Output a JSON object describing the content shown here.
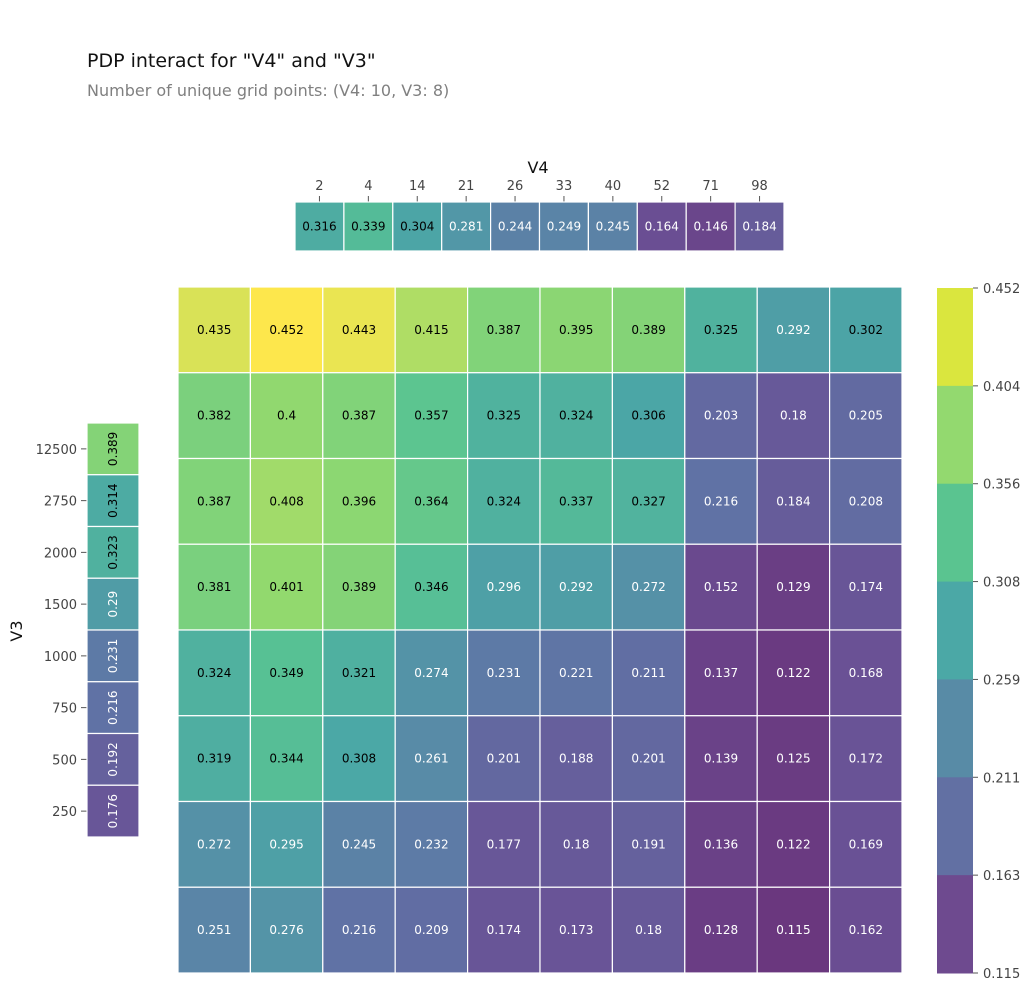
{
  "chart_data": {
    "type": "heatmap",
    "title": "PDP interact for \"V4\" and \"V3\"",
    "subtitle": "Number of unique grid points: (V4: 10, V3: 8)",
    "xlabel": "V4",
    "ylabel": "V3",
    "x_ticks": [
      "2",
      "4",
      "14",
      "21",
      "26",
      "33",
      "40",
      "52",
      "71",
      "98"
    ],
    "y_ticks": [
      "12500",
      "2750",
      "2000",
      "1500",
      "1000",
      "750",
      "500",
      "250"
    ],
    "x_marginal": [
      0.316,
      0.339,
      0.304,
      0.281,
      0.244,
      0.249,
      0.245,
      0.164,
      0.146,
      0.184
    ],
    "y_marginal": [
      0.389,
      0.314,
      0.323,
      0.29,
      0.231,
      0.216,
      0.192,
      0.176
    ],
    "matrix": [
      [
        0.435,
        0.452,
        0.443,
        0.415,
        0.387,
        0.395,
        0.389,
        0.325,
        0.292,
        0.302
      ],
      [
        0.382,
        0.4,
        0.387,
        0.357,
        0.325,
        0.324,
        0.306,
        0.203,
        0.18,
        0.205
      ],
      [
        0.387,
        0.408,
        0.396,
        0.364,
        0.324,
        0.337,
        0.327,
        0.216,
        0.184,
        0.208
      ],
      [
        0.381,
        0.401,
        0.389,
        0.346,
        0.296,
        0.292,
        0.272,
        0.152,
        0.129,
        0.174
      ],
      [
        0.324,
        0.349,
        0.321,
        0.274,
        0.231,
        0.221,
        0.211,
        0.137,
        0.122,
        0.168
      ],
      [
        0.319,
        0.344,
        0.308,
        0.261,
        0.201,
        0.188,
        0.201,
        0.139,
        0.125,
        0.172
      ],
      [
        0.272,
        0.295,
        0.245,
        0.232,
        0.177,
        0.18,
        0.191,
        0.136,
        0.122,
        0.169
      ],
      [
        0.251,
        0.276,
        0.216,
        0.209,
        0.174,
        0.173,
        0.18,
        0.128,
        0.115,
        0.162
      ]
    ],
    "colorbar": {
      "ticks": [
        "0.452",
        "0.404",
        "0.356",
        "0.308",
        "0.259",
        "0.211",
        "0.163",
        "0.115"
      ],
      "min": 0.115,
      "max": 0.452,
      "bins": [
        "#dae63e",
        "#93d96f",
        "#5ac490",
        "#4ba8a6",
        "#588ba6",
        "#6270a3",
        "#6e4a8f"
      ]
    },
    "colormap": "viridis",
    "grid": false
  }
}
